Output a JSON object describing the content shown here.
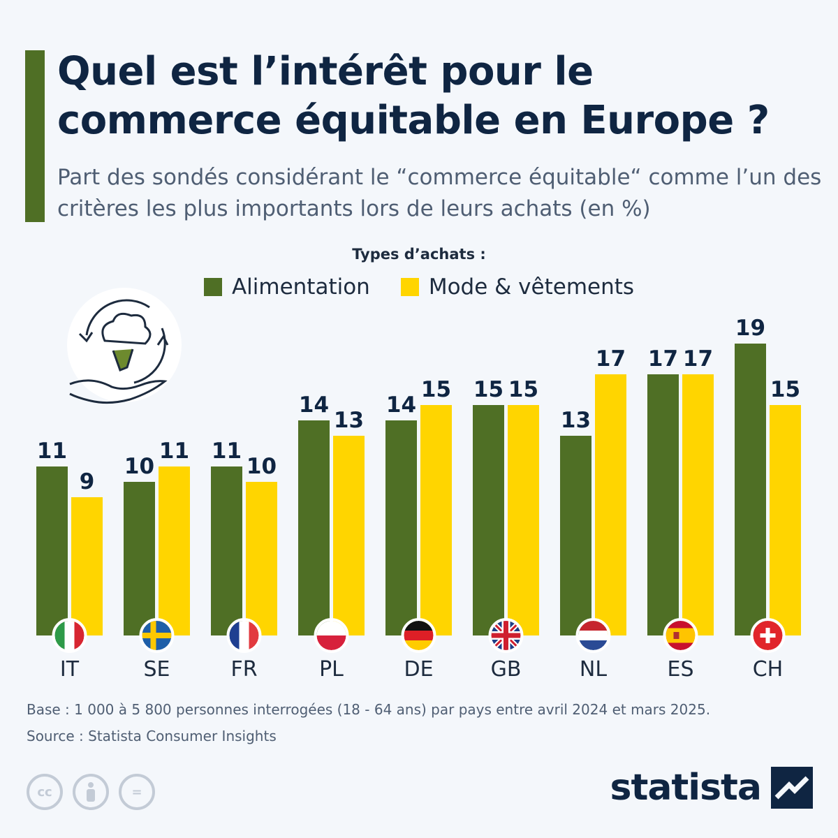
{
  "title": "Quel est l’intérêt pour le commerce équitable en Europe ?",
  "subtitle": "Part des sondés considérant le “commerce équitable“ comme l’un des critères les plus importants lors de leurs achats (en %)",
  "legend": {
    "title": "Types d’achats :",
    "items": [
      {
        "label": "Alimentation",
        "color": "#4f6f25"
      },
      {
        "label": "Mode & vêtements",
        "color": "#ffd500"
      }
    ]
  },
  "chart_data": {
    "type": "bar",
    "categories": [
      "IT",
      "SE",
      "FR",
      "PL",
      "DE",
      "GB",
      "NL",
      "ES",
      "CH"
    ],
    "series": [
      {
        "name": "Alimentation",
        "color": "#4f6f25",
        "values": [
          11,
          10,
          11,
          14,
          14,
          15,
          13,
          17,
          19
        ]
      },
      {
        "name": "Mode & vêtements",
        "color": "#ffd500",
        "values": [
          9,
          11,
          10,
          13,
          15,
          15,
          17,
          17,
          15
        ]
      }
    ],
    "flags": [
      "italy-flag-icon",
      "sweden-flag-icon",
      "france-flag-icon",
      "poland-flag-icon",
      "germany-flag-icon",
      "uk-flag-icon",
      "netherlands-flag-icon",
      "spain-flag-icon",
      "switzerland-flag-icon"
    ],
    "ylim": [
      0,
      20
    ],
    "grid": false,
    "legend_position": "top-center"
  },
  "footer": {
    "base": "Base : 1 000 à 5 800 personnes interrogées (18 - 64 ans) par pays entre avril 2024 et mars 2025.",
    "source": "Source : Statista Consumer Insights",
    "license_icons": [
      "cc-icon",
      "attribution-icon",
      "no-derivatives-icon"
    ],
    "license_text": [
      "cc",
      "="
    ]
  },
  "brand": {
    "name": "statista",
    "logo_icon": "statista-logo-icon"
  },
  "illustration": {
    "icon": "hand-broccoli-recycle-icon"
  }
}
